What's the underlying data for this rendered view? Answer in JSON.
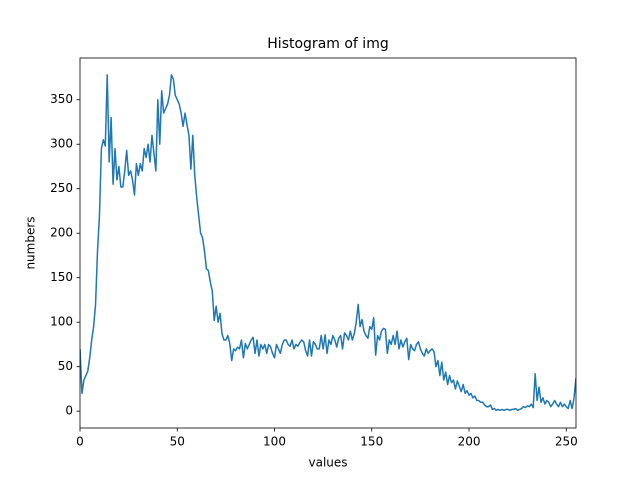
{
  "chart_data": {
    "type": "line",
    "title": "Histogram of img",
    "xlabel": "values",
    "ylabel": "numbers",
    "x": [
      0,
      1,
      2,
      3,
      4,
      5,
      6,
      7,
      8,
      9,
      10,
      11,
      12,
      13,
      14,
      15,
      16,
      17,
      18,
      19,
      20,
      21,
      22,
      23,
      24,
      25,
      26,
      27,
      28,
      29,
      30,
      31,
      32,
      33,
      34,
      35,
      36,
      37,
      38,
      39,
      40,
      41,
      42,
      43,
      44,
      45,
      46,
      47,
      48,
      49,
      50,
      51,
      52,
      53,
      54,
      55,
      56,
      57,
      58,
      59,
      60,
      61,
      62,
      63,
      64,
      65,
      66,
      67,
      68,
      69,
      70,
      71,
      72,
      73,
      74,
      75,
      76,
      77,
      78,
      79,
      80,
      81,
      82,
      83,
      84,
      85,
      86,
      87,
      88,
      89,
      90,
      91,
      92,
      93,
      94,
      95,
      96,
      97,
      98,
      99,
      100,
      101,
      102,
      103,
      104,
      105,
      106,
      107,
      108,
      109,
      110,
      111,
      112,
      113,
      114,
      115,
      116,
      117,
      118,
      119,
      120,
      121,
      122,
      123,
      124,
      125,
      126,
      127,
      128,
      129,
      130,
      131,
      132,
      133,
      134,
      135,
      136,
      137,
      138,
      139,
      140,
      141,
      142,
      143,
      144,
      145,
      146,
      147,
      148,
      149,
      150,
      151,
      152,
      153,
      154,
      155,
      156,
      157,
      158,
      159,
      160,
      161,
      162,
      163,
      164,
      165,
      166,
      167,
      168,
      169,
      170,
      171,
      172,
      173,
      174,
      175,
      176,
      177,
      178,
      179,
      180,
      181,
      182,
      183,
      184,
      185,
      186,
      187,
      188,
      189,
      190,
      191,
      192,
      193,
      194,
      195,
      196,
      197,
      198,
      199,
      200,
      201,
      202,
      203,
      204,
      205,
      206,
      207,
      208,
      209,
      210,
      211,
      212,
      213,
      214,
      215,
      216,
      217,
      218,
      219,
      220,
      221,
      222,
      223,
      224,
      225,
      226,
      227,
      228,
      229,
      230,
      231,
      232,
      233,
      234,
      235,
      236,
      237,
      238,
      239,
      240,
      241,
      242,
      243,
      244,
      245,
      246,
      247,
      248,
      249,
      250,
      251,
      252,
      253,
      254,
      255
    ],
    "series": [
      {
        "color": "#1f77b4",
        "values": [
          70,
          20,
          35,
          40,
          45,
          60,
          80,
          95,
          120,
          180,
          220,
          295,
          305,
          298,
          378,
          280,
          330,
          255,
          295,
          260,
          275,
          252,
          252,
          270,
          293,
          265,
          270,
          260,
          243,
          278,
          265,
          278,
          270,
          295,
          285,
          300,
          280,
          310,
          290,
          270,
          350,
          300,
          360,
          335,
          340,
          345,
          355,
          378,
          373,
          355,
          350,
          345,
          335,
          320,
          335,
          322,
          310,
          272,
          310,
          265,
          240,
          220,
          200,
          195,
          180,
          160,
          158,
          145,
          135,
          102,
          118,
          100,
          110,
          87,
          80,
          80,
          85,
          76,
          57,
          70,
          68,
          72,
          70,
          80,
          60,
          76,
          70,
          75,
          80,
          83,
          65,
          80,
          62,
          75,
          70,
          75,
          65,
          75,
          72,
          65,
          60,
          75,
          70,
          65,
          75,
          80,
          80,
          75,
          73,
          80,
          70,
          75,
          73,
          77,
          80,
          78,
          68,
          62,
          80,
          62,
          78,
          75,
          70,
          70,
          85,
          70,
          86,
          65,
          80,
          75,
          85,
          80,
          72,
          82,
          85,
          70,
          88,
          85,
          80,
          90,
          80,
          87,
          100,
          120,
          95,
          103,
          90,
          85,
          82,
          95,
          92,
          105,
          63,
          85,
          80,
          90,
          93,
          92,
          65,
          80,
          75,
          85,
          75,
          90,
          70,
          80,
          72,
          78,
          82,
          58,
          75,
          70,
          68,
          75,
          78,
          70,
          65,
          62,
          70,
          65,
          68,
          70,
          67,
          50,
          57,
          40,
          55,
          35,
          44,
          30,
          40,
          32,
          35,
          25,
          34,
          28,
          22,
          30,
          20,
          23,
          18,
          20,
          15,
          17,
          12,
          12,
          10,
          10,
          7,
          5,
          5,
          7,
          2,
          3,
          1,
          2,
          1,
          2,
          1,
          2,
          2,
          1,
          2,
          2,
          3,
          1,
          2,
          3,
          5,
          4,
          6,
          5,
          8,
          4,
          42,
          12,
          27,
          10,
          15,
          8,
          12,
          10,
          5,
          8,
          12,
          8,
          5,
          10,
          5,
          8,
          5,
          3,
          12,
          3,
          15,
          37
        ]
      }
    ],
    "xlim": [
      0,
      255
    ],
    "xticks": [
      0,
      50,
      100,
      150,
      200,
      250
    ],
    "ylim": [
      -18.9,
      396.9
    ],
    "yticks": [
      0,
      50,
      100,
      150,
      200,
      250,
      300,
      350
    ]
  }
}
